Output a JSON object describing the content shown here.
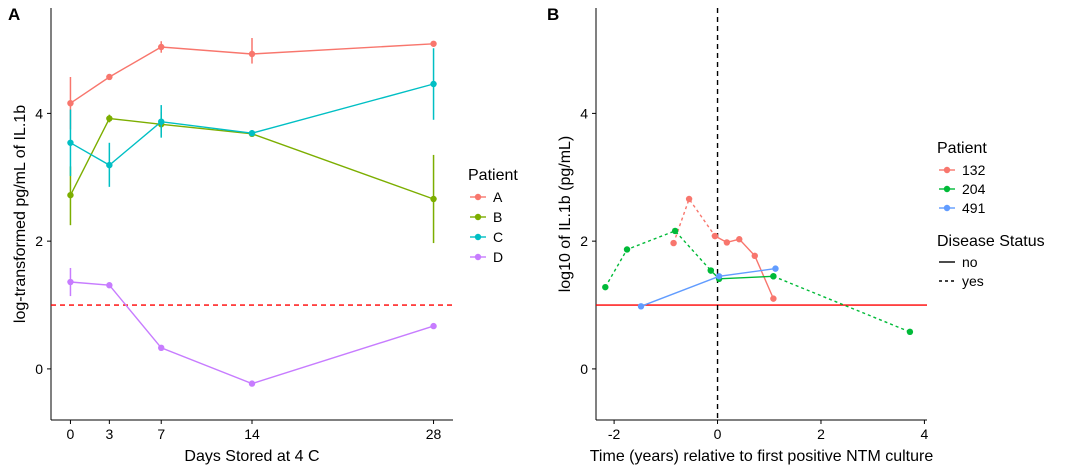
{
  "chart_data": [
    {
      "panel": "A",
      "type": "line",
      "xlabel": "Days Stored at 4 C",
      "ylabel": "log-transformed pg/mL of IL.1b",
      "xticks": [
        0,
        3,
        7,
        14,
        28
      ],
      "yticks": [
        0,
        2,
        4
      ],
      "xlim": [
        -1.5,
        29.5
      ],
      "ylim": [
        -0.8,
        5.65
      ],
      "grid": false,
      "legend": {
        "title": "Patient",
        "placement": "right",
        "entries": [
          "A",
          "B",
          "C",
          "D"
        ]
      },
      "reference_line": {
        "y": 1.0,
        "style": "dashed",
        "color": "#ff0000"
      },
      "series": [
        {
          "name": "A",
          "color": "#F8766D",
          "x": [
            0,
            3,
            7,
            14,
            28
          ],
          "y": [
            4.16,
            4.57,
            5.04,
            4.93,
            5.09
          ],
          "err_low": [
            3.75,
            4.57,
            4.95,
            4.78,
            5.09
          ],
          "err_high": [
            4.57,
            4.57,
            5.13,
            5.18,
            5.09
          ]
        },
        {
          "name": "B",
          "color": "#7CAE00",
          "x": [
            0,
            3,
            7,
            14,
            28
          ],
          "y": [
            2.72,
            3.92,
            3.83,
            3.68,
            2.66
          ],
          "err_low": [
            2.25,
            3.86,
            3.64,
            3.68,
            1.97
          ],
          "err_high": [
            3.17,
            3.98,
            4.02,
            3.68,
            3.35
          ]
        },
        {
          "name": "C",
          "color": "#00BFC4",
          "x": [
            0,
            3,
            7,
            14,
            28
          ],
          "y": [
            3.54,
            3.19,
            3.87,
            3.69,
            4.46
          ],
          "err_low": [
            3.02,
            2.85,
            3.62,
            3.64,
            3.9
          ],
          "err_high": [
            4.06,
            3.54,
            4.13,
            3.74,
            5.02
          ]
        },
        {
          "name": "D",
          "color": "#C77CFF",
          "x": [
            0,
            3,
            7,
            14,
            28
          ],
          "y": [
            1.36,
            1.31,
            0.33,
            -0.23,
            0.67
          ],
          "err_low": [
            1.14,
            1.31,
            0.33,
            -0.23,
            0.67
          ],
          "err_high": [
            1.58,
            1.31,
            0.33,
            -0.23,
            0.67
          ]
        }
      ]
    },
    {
      "panel": "B",
      "type": "line",
      "xlabel": "Time (years) relative to first positive NTM culture",
      "ylabel": "log10 of IL.1b (pg/mL)",
      "xticks": [
        -2,
        0,
        2,
        4
      ],
      "yticks": [
        0,
        2,
        4
      ],
      "xlim": [
        -2.35,
        4.05
      ],
      "ylim": [
        -0.8,
        5.65
      ],
      "grid": false,
      "legend": {
        "title": "Patient",
        "placement": "right",
        "entries": [
          "132",
          "204",
          "491"
        ],
        "linetype_title": "Disease Status",
        "linetype_entries": [
          {
            "label": "no",
            "style": "solid"
          },
          {
            "label": "yes",
            "style": "dashed"
          }
        ]
      },
      "reference_line": {
        "y": 1.0,
        "style": "solid",
        "color": "#ff0000"
      },
      "vertical_line": {
        "x": 0,
        "style": "dashed",
        "color": "#000000"
      },
      "series": [
        {
          "name": "132",
          "color": "#F8766D",
          "linetype": "yes",
          "x": [
            -0.85,
            -0.55,
            -0.05
          ],
          "y": [
            1.97,
            2.66,
            2.08
          ]
        },
        {
          "name": "132",
          "color": "#F8766D",
          "linetype": "no",
          "x": [
            -0.05,
            0.18,
            0.42,
            0.72,
            1.08
          ],
          "y": [
            2.08,
            1.98,
            2.03,
            1.77,
            1.1
          ]
        },
        {
          "name": "204",
          "color": "#00BA38",
          "linetype": "yes",
          "x": [
            -2.17,
            -1.75,
            -0.82,
            -0.13
          ],
          "y": [
            1.28,
            1.87,
            2.16,
            1.54
          ]
        },
        {
          "name": "204",
          "color": "#00BA38",
          "linetype": "no",
          "x": [
            -0.13,
            0.03,
            1.08
          ],
          "y": [
            1.54,
            1.41,
            1.45
          ]
        },
        {
          "name": "204",
          "color": "#00BA38",
          "linetype": "yes",
          "x": [
            1.08,
            3.72
          ],
          "y": [
            1.45,
            0.58
          ]
        },
        {
          "name": "491",
          "color": "#619CFF",
          "linetype": "no",
          "x": [
            -1.48,
            0.03,
            1.12
          ],
          "y": [
            0.98,
            1.45,
            1.57
          ]
        }
      ]
    }
  ]
}
